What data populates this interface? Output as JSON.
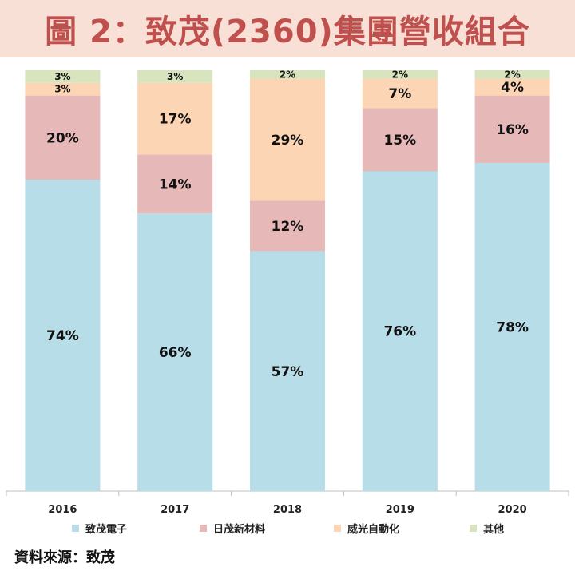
{
  "title": "圖 2：致茂(2360)集團營收組合",
  "source": "資料來源：致茂",
  "chart_data": {
    "type": "bar",
    "stacked": true,
    "percent": true,
    "categories": [
      "2016",
      "2017",
      "2018",
      "2019",
      "2020"
    ],
    "ylim": [
      0,
      100
    ],
    "grid": false,
    "legend_position": "bottom",
    "series": [
      {
        "name": "致茂電子",
        "color": "#b7dde8",
        "values": [
          74,
          66,
          57,
          76,
          78
        ]
      },
      {
        "name": "日茂新材料",
        "color": "#e6b9b8",
        "values": [
          20,
          14,
          12,
          15,
          16
        ]
      },
      {
        "name": "威光自動化",
        "color": "#fcd5b5",
        "values": [
          3,
          17,
          29,
          7,
          4
        ]
      },
      {
        "name": "其他",
        "color": "#d7e4bd",
        "values": [
          3,
          3,
          2,
          2,
          2
        ]
      }
    ]
  }
}
